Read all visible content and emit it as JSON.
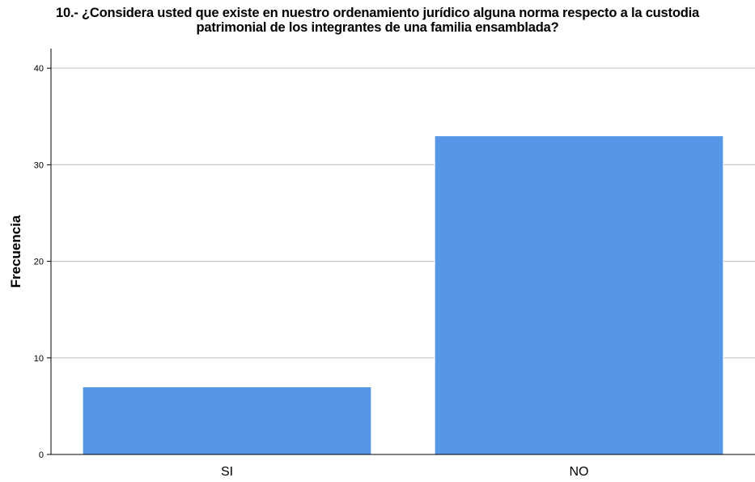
{
  "chart_data": {
    "type": "bar",
    "title_lines": [
      "10.- ¿Considera usted que existe en nuestro ordenamiento jurídico alguna norma respecto a la custodia",
      "patrimonial de los integrantes de una familia ensamblada?"
    ],
    "xlabel": "",
    "ylabel": "Frecuencia",
    "categories": [
      "SI",
      "NO"
    ],
    "values": [
      7,
      33
    ],
    "ylim": [
      0,
      42
    ],
    "yticks": [
      0,
      10,
      20,
      30,
      40
    ],
    "grid": true,
    "legend": "none",
    "colors": {
      "bar": "#5596e6",
      "bar_edge": "#ffffff",
      "grid": "#c8c8c8",
      "axis": "#000000"
    }
  }
}
